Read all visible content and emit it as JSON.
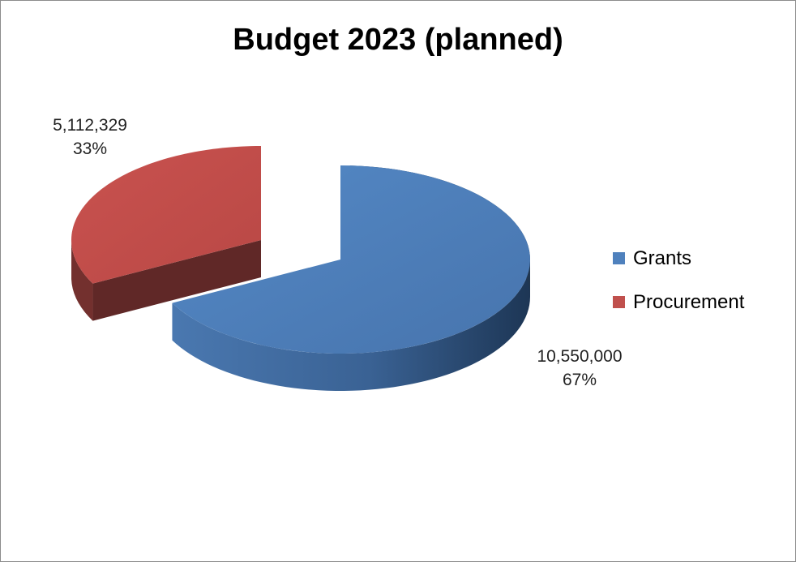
{
  "chart_data": {
    "type": "pie",
    "title": "Budget 2023 (planned)",
    "three_d": true,
    "exploded": true,
    "legend_position": "right",
    "slices": [
      {
        "name": "Grants",
        "value": 10550000,
        "value_label": "10,550,000",
        "percent_label": "67%",
        "color": "#4f81bd"
      },
      {
        "name": "Procurement",
        "value": 5112329,
        "value_label": "5,112,329",
        "percent_label": "33%",
        "color": "#c0504d"
      }
    ]
  }
}
